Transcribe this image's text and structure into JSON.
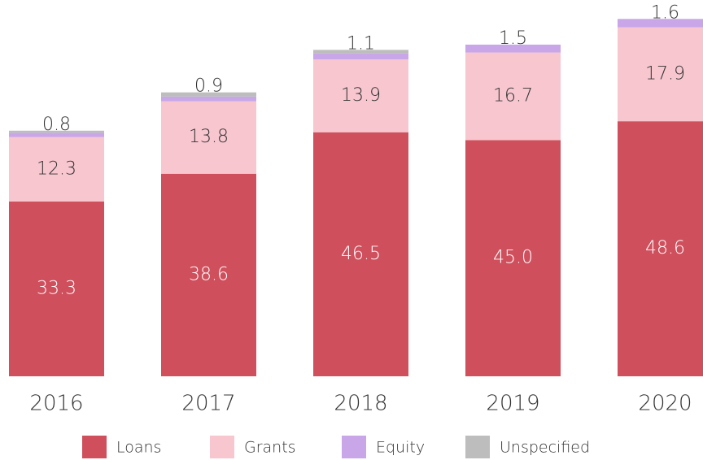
{
  "chart_data": {
    "type": "stacked_bar",
    "categories": [
      "2016",
      "2017",
      "2018",
      "2019",
      "2020"
    ],
    "series": [
      {
        "name": "Loans",
        "color": "#cf4f5c",
        "values": [
          33.3,
          38.6,
          46.5,
          45.0,
          48.6
        ],
        "value_labels": [
          "33.3",
          "38.6",
          "46.5",
          "45.0",
          "48.6"
        ]
      },
      {
        "name": "Grants",
        "color": "#f7c6cf",
        "values": [
          12.3,
          13.8,
          13.9,
          16.7,
          17.9
        ]
      },
      {
        "name": "Equity",
        "color": "#c9a6e8",
        "values": [
          0.8,
          0.9,
          1.1,
          1.5,
          1.6
        ]
      },
      {
        "name": "Unspecified",
        "color": "#bdbdbd",
        "values": [
          0.4,
          0.8,
          0.7,
          0,
          0
        ]
      }
    ],
    "ylim": [
      0,
      70
    ],
    "legend": "bottom"
  }
}
